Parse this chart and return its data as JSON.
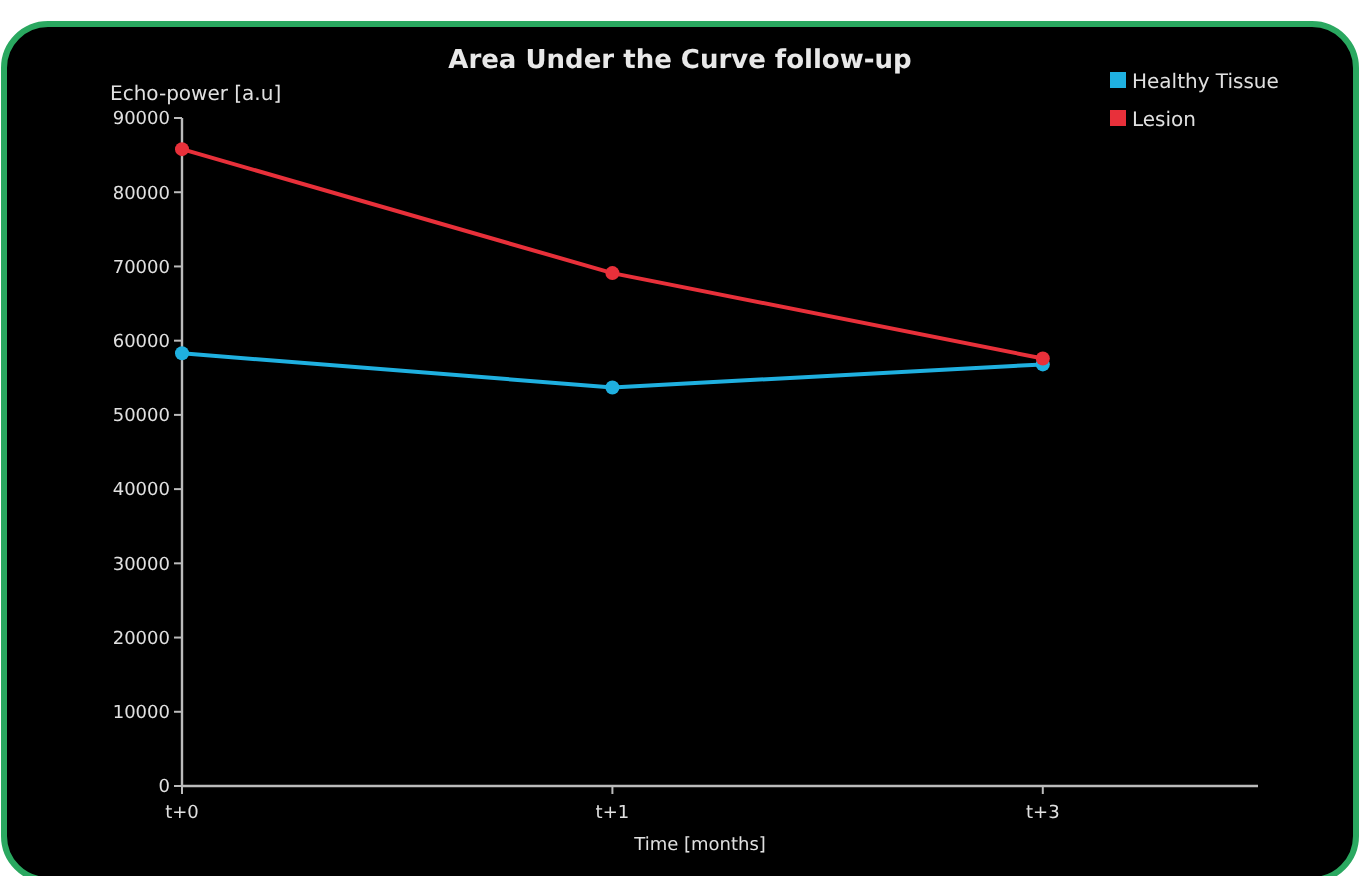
{
  "chart_data": {
    "type": "line",
    "title": "Area Under the Curve follow-up",
    "xlabel": "Time [months]",
    "ylabel": "Echo-power [a.u]",
    "categories": [
      "t+0",
      "t+1",
      "t+3"
    ],
    "ylim": [
      0,
      90000
    ],
    "yticks": [
      0,
      10000,
      20000,
      30000,
      40000,
      50000,
      60000,
      70000,
      80000,
      90000
    ],
    "series": [
      {
        "name": "Healthy Tissue",
        "color": "#1fb0e0",
        "values": [
          58300,
          53700,
          56800
        ]
      },
      {
        "name": "Lesion",
        "color": "#e8303a",
        "values": [
          85800,
          69100,
          57600
        ]
      }
    ],
    "legend": "top right",
    "marker": "circle",
    "grid": false
  }
}
